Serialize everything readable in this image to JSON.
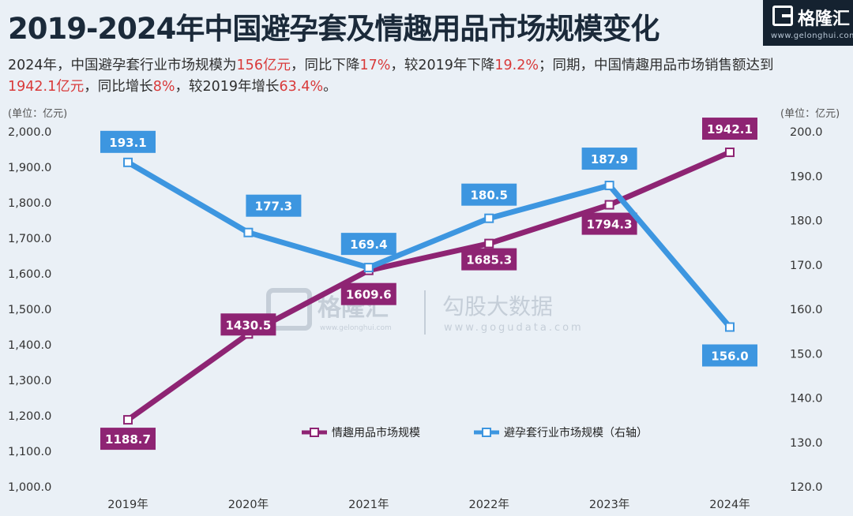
{
  "title": "2019-2024年中国避孕套及情趣用品市场规模变化",
  "subtitle": {
    "p1": "2024年，中国避孕套行业市场规模为",
    "v1": "156亿元",
    "p2": "，同比下降",
    "v2": "17%",
    "p3": "，较2019年下降",
    "v3": "19.2%",
    "p4": "；同期，中国情趣用品市场销售额达到",
    "v4": "1942.1亿元",
    "p5": "，同比增长",
    "v5": "8%",
    "p6": "，较2019年增长",
    "v6": "63.4%",
    "p7": "。"
  },
  "logo": {
    "name": "格隆汇",
    "url": "www.gelonghui.com"
  },
  "watermark": {
    "brand": "格隆汇",
    "brand_url": "www.gelonghui.com",
    "source": "勾股大数据",
    "source_url": "www.gogudata.com"
  },
  "colors": {
    "purple": "#8e2473",
    "blue": "#3d96e0",
    "highlight": "#d93a3a"
  },
  "chart_data": {
    "type": "line",
    "categories": [
      "2019年",
      "2020年",
      "2021年",
      "2022年",
      "2023年",
      "2024年"
    ],
    "left_axis": {
      "unit": "(单位：亿元)",
      "ylim": [
        1000,
        2000
      ],
      "ticks": [
        "1,000.0",
        "1,100.0",
        "1,200.0",
        "1,300.0",
        "1,400.0",
        "1,500.0",
        "1,600.0",
        "1,700.0",
        "1,800.0",
        "1,900.0",
        "2,000.0"
      ]
    },
    "right_axis": {
      "unit": "(单位：亿元)",
      "ylim": [
        120,
        200
      ],
      "ticks": [
        "120.0",
        "130.0",
        "140.0",
        "150.0",
        "160.0",
        "170.0",
        "180.0",
        "190.0",
        "200.0"
      ]
    },
    "series": [
      {
        "name": "情趣用品市场规模",
        "axis": "left",
        "color": "#8e2473",
        "values": [
          1188.7,
          1430.5,
          1609.6,
          1685.3,
          1794.3,
          1942.1
        ],
        "labels": [
          "1188.7",
          "1430.5",
          "1609.6",
          "1685.3",
          "1794.3",
          "1942.1"
        ]
      },
      {
        "name": "避孕套行业市场规模（右轴）",
        "axis": "right",
        "color": "#3d96e0",
        "values": [
          193.1,
          177.3,
          169.4,
          180.5,
          187.9,
          156.0
        ],
        "labels": [
          "193.1",
          "177.3",
          "169.4",
          "180.5",
          "187.9",
          "156.0"
        ]
      }
    ],
    "legend": "bottom-center",
    "grid": false
  }
}
